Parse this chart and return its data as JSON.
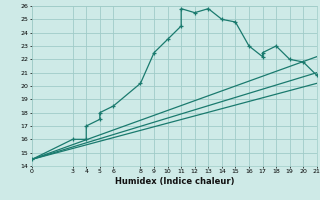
{
  "xlabel": "Humidex (Indice chaleur)",
  "bg_color": "#ceeae7",
  "grid_color": "#a0ccc8",
  "line_color": "#1a7a6e",
  "xlim": [
    0,
    21
  ],
  "ylim": [
    14,
    26
  ],
  "xticks": [
    0,
    3,
    4,
    5,
    6,
    8,
    9,
    10,
    11,
    12,
    13,
    14,
    15,
    16,
    17,
    18,
    19,
    20,
    21
  ],
  "yticks": [
    14,
    15,
    16,
    17,
    18,
    19,
    20,
    21,
    22,
    23,
    24,
    25,
    26
  ],
  "main_x": [
    0,
    3,
    4,
    4,
    5,
    5,
    6,
    8,
    9,
    10,
    11,
    11,
    12,
    13,
    14,
    15,
    16,
    17,
    17,
    18,
    19,
    20,
    21
  ],
  "main_y": [
    14.5,
    16,
    16,
    17,
    17.5,
    18,
    18.5,
    20.2,
    22.5,
    23.5,
    24.5,
    25.8,
    25.5,
    25.8,
    25.0,
    24.8,
    23.0,
    22.2,
    22.5,
    23.0,
    22.0,
    21.8,
    20.8
  ],
  "line1_x": [
    0,
    21
  ],
  "line1_y": [
    14.5,
    22.2
  ],
  "line2_x": [
    0,
    21
  ],
  "line2_y": [
    14.5,
    21.0
  ],
  "line3_x": [
    0,
    21
  ],
  "line3_y": [
    14.5,
    20.2
  ]
}
